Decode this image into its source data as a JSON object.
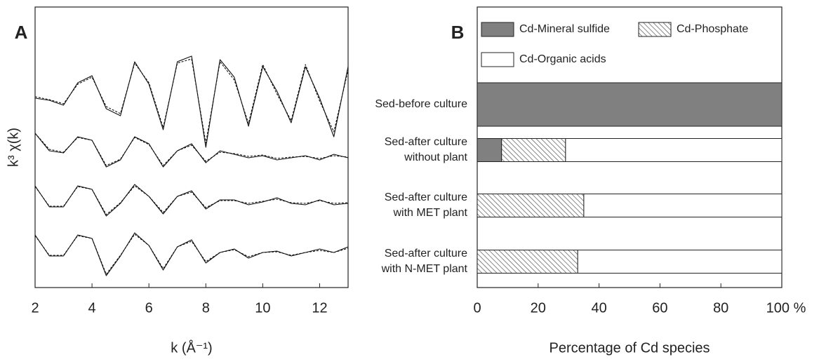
{
  "chart_data": [
    {
      "type": "line",
      "panel": "A",
      "xlabel": "k (Å⁻¹)",
      "ylabel": "k³ χ(k)",
      "xlim": [
        2,
        13
      ],
      "xticks": [
        2,
        4,
        6,
        8,
        10,
        12
      ],
      "ylim": [
        0,
        40
      ],
      "x": [
        2,
        2.5,
        3,
        3.5,
        4,
        4.5,
        5,
        5.5,
        6,
        6.5,
        7,
        7.5,
        8,
        8.5,
        9,
        9.5,
        10,
        10.5,
        11,
        11.5,
        12,
        12.5,
        13
      ],
      "series": [
        {
          "color": "#111111",
          "dash": false,
          "values": [
            27,
            26.7,
            26,
            29.2,
            30.2,
            25.5,
            24.5,
            32.2,
            29,
            22.5,
            32.2,
            33,
            20,
            32.5,
            30,
            23,
            31.5,
            28,
            23.5,
            31.5,
            27,
            21.5,
            31.5
          ]
        },
        {
          "color": "#111111",
          "dash": true,
          "values": [
            27.2,
            26.8,
            26.2,
            29,
            30,
            25.8,
            24.8,
            32,
            29.2,
            22.8,
            32,
            32.6,
            20.6,
            32.2,
            29.6,
            23.4,
            31.8,
            27.6,
            23.8,
            31.8,
            26.6,
            22.2,
            31
          ]
        },
        {
          "color": "#111111",
          "dash": false,
          "values": [
            22,
            19.5,
            19.2,
            21.5,
            21,
            17.2,
            18.2,
            21.5,
            20.5,
            17.2,
            19.5,
            20.5,
            17.8,
            19.5,
            19,
            18.5,
            18.8,
            18.2,
            18.5,
            18.8,
            18.2,
            19,
            18.5
          ]
        },
        {
          "color": "#111111",
          "dash": true,
          "values": [
            22,
            19.7,
            19.3,
            21.4,
            21,
            17.4,
            18.3,
            21.4,
            20.4,
            17.4,
            19.5,
            20.3,
            18,
            19.3,
            19.1,
            18.7,
            18.9,
            18.4,
            18.6,
            18.7,
            18.4,
            18.8,
            18.6
          ]
        },
        {
          "color": "#111111",
          "dash": false,
          "values": [
            14.5,
            11.5,
            11.5,
            14.5,
            14,
            10.2,
            12,
            14.7,
            13,
            10.5,
            13,
            13.8,
            11.2,
            12.5,
            12.5,
            11.8,
            12.2,
            12.8,
            12,
            11.8,
            12.5,
            11.8,
            12
          ]
        },
        {
          "color": "#111111",
          "dash": true,
          "values": [
            14.4,
            11.6,
            11.6,
            14.4,
            14,
            10.4,
            12.1,
            14.5,
            13,
            10.7,
            13,
            13.6,
            11.4,
            12.4,
            12.4,
            12,
            12.3,
            12.6,
            12.1,
            12,
            12.4,
            12,
            12.1
          ]
        },
        {
          "color": "#111111",
          "dash": false,
          "values": [
            7.5,
            4.5,
            4.5,
            7.5,
            7,
            1.7,
            4.5,
            7.8,
            6,
            2.5,
            5.8,
            6.8,
            3.5,
            5,
            5.5,
            4.2,
            5,
            5.2,
            4.5,
            5,
            5.5,
            5,
            5.8
          ]
        },
        {
          "color": "#111111",
          "dash": true,
          "values": [
            7.4,
            4.6,
            4.6,
            7.4,
            7,
            1.9,
            4.6,
            7.6,
            6,
            2.7,
            5.8,
            6.6,
            3.7,
            5,
            5.4,
            4.4,
            5,
            5.1,
            4.6,
            5,
            5.3,
            5,
            5.6
          ]
        }
      ]
    },
    {
      "type": "stacked-barh",
      "panel": "B",
      "xlabel": "Percentage of Cd species",
      "xlim": [
        0,
        100
      ],
      "xticks": [
        0,
        20,
        40,
        60,
        80,
        {
          "value": 100,
          "label": "100 %"
        }
      ],
      "categories": [
        [
          "Sed-before culture"
        ],
        [
          "Sed-after culture",
          "without plant"
        ],
        [
          "Sed-after culture",
          "with MET plant"
        ],
        [
          "Sed-after culture",
          "with N-MET plant"
        ]
      ],
      "series": [
        {
          "name": "Cd-Mineral sulfide",
          "color": "#808080",
          "fill": "solid",
          "values": [
            100,
            8,
            0,
            0
          ]
        },
        {
          "name": "Cd-Phosphate",
          "color": "#ffffff",
          "fill": "hatch",
          "values": [
            0,
            21,
            35,
            33
          ]
        },
        {
          "name": "Cd-Organic acids",
          "color": "#ffffff",
          "fill": "solid",
          "values": [
            0,
            71,
            65,
            67
          ]
        }
      ]
    }
  ]
}
